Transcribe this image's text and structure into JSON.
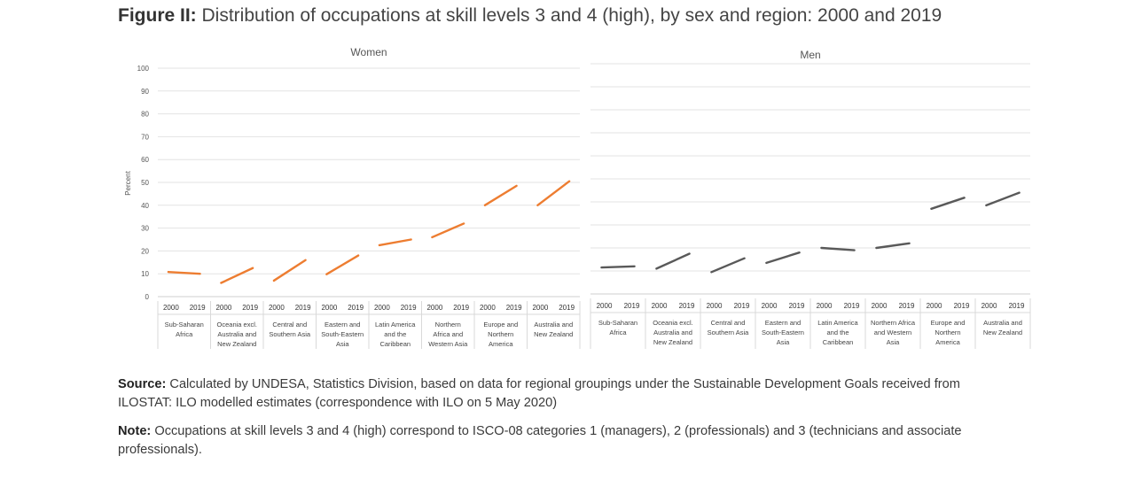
{
  "figure": {
    "label": "Figure II:",
    "title": "Distribution of occupations at skill levels 3 and 4 (high), by sex and region: 2000 and 2019"
  },
  "source": {
    "label": "Source:",
    "text": "Calculated by UNDESA, Statistics Division, based on data for regional groupings under the Sustainable Development Goals received from ILOSTAT: ILO modelled estimates (correspondence with ILO on 5 May 2020)"
  },
  "note": {
    "label": "Note:",
    "text": "Occupations at skill levels 3 and 4 (high) correspond to ISCO-08 categories 1 (managers), 2 (professionals) and 3 (technicians and associate professionals)."
  },
  "chart_data": [
    {
      "type": "line",
      "title": "Women",
      "ylabel": "Percent",
      "ylim": [
        0,
        100
      ],
      "yticks": [
        "0",
        "10",
        "20",
        "30",
        "40",
        "50",
        "60",
        "70",
        "80",
        "90",
        "100"
      ],
      "show_yticks": true,
      "grid": true,
      "years": [
        "2000",
        "2019"
      ],
      "categories": [
        [
          "Sub-Saharan",
          "Africa"
        ],
        [
          "Oceania excl.",
          "Australia and",
          "New Zealand"
        ],
        [
          "Central and",
          "Southern Asia"
        ],
        [
          "Eastern and",
          "South-Eastern",
          "Asia"
        ],
        [
          "Latin America",
          "and the",
          "Caribbean"
        ],
        [
          "Northern",
          "Africa and",
          "Western Asia"
        ],
        [
          "Europe and",
          "Northern",
          "America"
        ],
        [
          "Australia and",
          "New Zealand"
        ]
      ],
      "color": "#ED7D31",
      "values": [
        [
          10.8,
          10.0
        ],
        [
          6.0,
          12.5
        ],
        [
          7.0,
          16.0
        ],
        [
          9.8,
          18.0
        ],
        [
          22.5,
          25.0
        ],
        [
          26.0,
          32.0
        ],
        [
          40.0,
          48.5
        ],
        [
          40.0,
          50.5
        ]
      ]
    },
    {
      "type": "line",
      "title": "Men",
      "ylim": [
        0,
        100
      ],
      "show_yticks": false,
      "grid": true,
      "years": [
        "2000",
        "2019"
      ],
      "categories": [
        [
          "Sub-Saharan",
          "Africa"
        ],
        [
          "Oceania excl.",
          "Australia and",
          "New Zealand"
        ],
        [
          "Central and",
          "Southern Asia"
        ],
        [
          "Eastern and",
          "South-Eastern",
          "Asia"
        ],
        [
          "Latin America",
          "and the",
          "Caribbean"
        ],
        [
          "Northern Africa",
          "and Western",
          "Asia"
        ],
        [
          "Europe and",
          "Northern",
          "America"
        ],
        [
          "Australia and",
          "New Zealand"
        ]
      ],
      "color": "#595959",
      "values": [
        [
          11.5,
          12.0
        ],
        [
          11.0,
          17.5
        ],
        [
          9.5,
          15.5
        ],
        [
          13.5,
          18.0
        ],
        [
          20.0,
          19.0
        ],
        [
          20.0,
          22.0
        ],
        [
          37.0,
          41.8
        ],
        [
          38.5,
          44.0
        ]
      ]
    }
  ]
}
